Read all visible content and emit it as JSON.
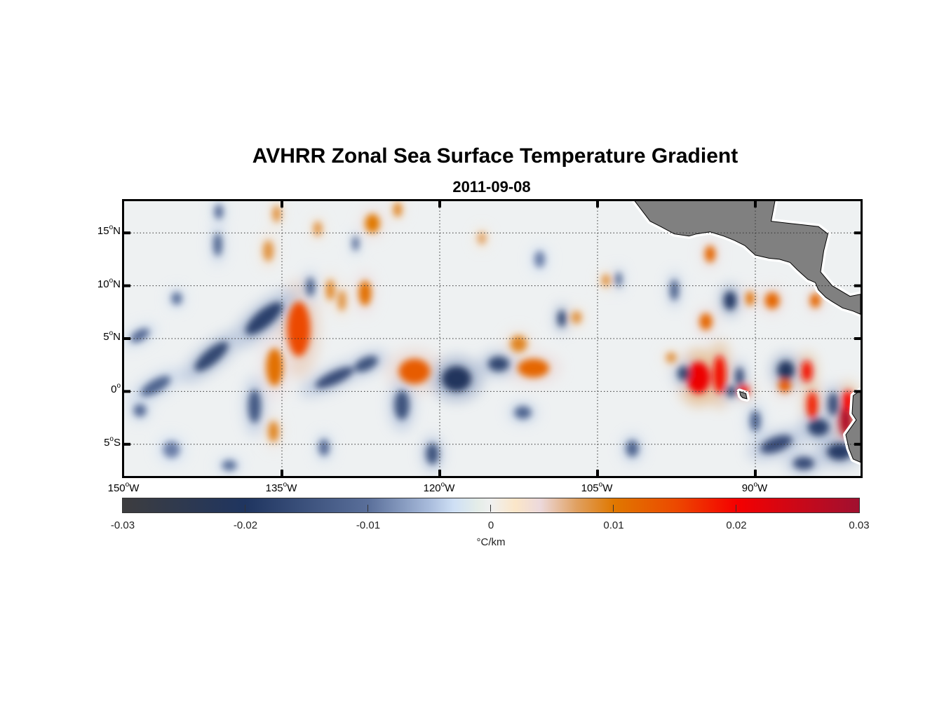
{
  "chart_data": {
    "type": "heatmap",
    "title": "AVHRR Zonal Sea Surface Temperature Gradient",
    "subtitle": "2011-09-08",
    "xlim": [
      -150,
      -80
    ],
    "ylim": [
      -8,
      18
    ],
    "grid": true,
    "x_ticks": [
      {
        "value": -150,
        "label": "150",
        "suffix": "W"
      },
      {
        "value": -135,
        "label": "135",
        "suffix": "W"
      },
      {
        "value": -120,
        "label": "120",
        "suffix": "W"
      },
      {
        "value": -105,
        "label": "105",
        "suffix": "W"
      },
      {
        "value": -90,
        "label": "90",
        "suffix": "W"
      }
    ],
    "y_ticks": [
      {
        "value": 15,
        "label": "15",
        "suffix": "N"
      },
      {
        "value": 10,
        "label": "10",
        "suffix": "N"
      },
      {
        "value": 5,
        "label": "5",
        "suffix": "N"
      },
      {
        "value": 0,
        "label": "0",
        "suffix": ""
      },
      {
        "value": -5,
        "label": "5",
        "suffix": "S"
      }
    ],
    "colorbar": {
      "range": [
        -0.03,
        0.03
      ],
      "ticks": [
        "-0.03",
        "-0.02",
        "-0.01",
        "0",
        "0.01",
        "0.02",
        "0.03"
      ],
      "tick_values": [
        -0.03,
        -0.02,
        -0.01,
        0,
        0.01,
        0.02,
        0.03
      ],
      "unit": "°C/km",
      "placement": "bottom",
      "colormap": [
        [
          -0.03,
          "#3d3d3f"
        ],
        [
          -0.02,
          "#1f3560"
        ],
        [
          -0.01,
          "#5a6f9a"
        ],
        [
          -0.005,
          "#a9bcdc"
        ],
        [
          -0.003,
          "#cfe0f5"
        ],
        [
          -0.001,
          "#e5ede8"
        ],
        [
          0,
          "#f0f0f0"
        ],
        [
          0.002,
          "#fbe6c8"
        ],
        [
          0.004,
          "#ecd9dc"
        ],
        [
          0.007,
          "#e0a060"
        ],
        [
          0.01,
          "#e07800"
        ],
        [
          0.015,
          "#ec4a00"
        ],
        [
          0.02,
          "#f50000"
        ],
        [
          0.03,
          "#a01030"
        ]
      ]
    },
    "land_color": "#808080",
    "features": [
      {
        "lon": -133.4,
        "lat": 5.9,
        "value": 0.015,
        "rx": 1.1,
        "ry": 2.6
      },
      {
        "lon": -135.7,
        "lat": 2.3,
        "value": 0.011,
        "rx": 0.8,
        "ry": 1.8
      },
      {
        "lon": -135.8,
        "lat": -3.8,
        "value": 0.009,
        "rx": 0.5,
        "ry": 1.0
      },
      {
        "lon": -127.1,
        "lat": 9.3,
        "value": 0.011,
        "rx": 0.6,
        "ry": 1.2
      },
      {
        "lon": -130.4,
        "lat": 9.6,
        "value": 0.009,
        "rx": 0.4,
        "ry": 1.0
      },
      {
        "lon": -129.3,
        "lat": 8.6,
        "value": 0.008,
        "rx": 0.4,
        "ry": 1.0
      },
      {
        "lon": -122.4,
        "lat": 1.9,
        "value": 0.013,
        "rx": 1.5,
        "ry": 1.2
      },
      {
        "lon": -111.1,
        "lat": 2.2,
        "value": 0.012,
        "rx": 1.5,
        "ry": 0.9
      },
      {
        "lon": -112.5,
        "lat": 4.5,
        "value": 0.009,
        "rx": 0.8,
        "ry": 0.8
      },
      {
        "lon": -126.4,
        "lat": 15.9,
        "value": 0.01,
        "rx": 0.7,
        "ry": 0.9
      },
      {
        "lon": -124.0,
        "lat": 17.2,
        "value": 0.009,
        "rx": 0.4,
        "ry": 0.7
      },
      {
        "lon": -131.6,
        "lat": 15.4,
        "value": 0.008,
        "rx": 0.4,
        "ry": 0.7
      },
      {
        "lon": -136.3,
        "lat": 13.3,
        "value": 0.008,
        "rx": 0.5,
        "ry": 1.0
      },
      {
        "lon": -135.5,
        "lat": 16.8,
        "value": 0.008,
        "rx": 0.4,
        "ry": 0.8
      },
      {
        "lon": -116.0,
        "lat": 14.5,
        "value": 0.007,
        "rx": 0.4,
        "ry": 0.6
      },
      {
        "lon": -107.0,
        "lat": 7.0,
        "value": 0.008,
        "rx": 0.5,
        "ry": 0.6
      },
      {
        "lon": -95.4,
        "lat": 1.3,
        "value": 0.021,
        "rx": 1.1,
        "ry": 1.5
      },
      {
        "lon": -93.4,
        "lat": 1.6,
        "value": 0.019,
        "rx": 0.6,
        "ry": 1.8
      },
      {
        "lon": -91.1,
        "lat": 0.1,
        "value": 0.019,
        "rx": 0.5,
        "ry": 0.5
      },
      {
        "lon": -85.1,
        "lat": 1.9,
        "value": 0.019,
        "rx": 0.5,
        "ry": 1.0
      },
      {
        "lon": -84.6,
        "lat": -1.3,
        "value": 0.018,
        "rx": 0.5,
        "ry": 1.3
      },
      {
        "lon": -87.2,
        "lat": 0.6,
        "value": 0.013,
        "rx": 0.6,
        "ry": 0.7
      },
      {
        "lon": -81.4,
        "lat": -2.7,
        "value": 0.028,
        "rx": 0.6,
        "ry": 1.5
      },
      {
        "lon": -81.2,
        "lat": -0.9,
        "value": 0.02,
        "rx": 0.5,
        "ry": 1.0
      },
      {
        "lon": -94.7,
        "lat": 6.6,
        "value": 0.012,
        "rx": 0.6,
        "ry": 0.8
      },
      {
        "lon": -88.4,
        "lat": 8.6,
        "value": 0.012,
        "rx": 0.7,
        "ry": 0.8
      },
      {
        "lon": -90.5,
        "lat": 8.8,
        "value": 0.011,
        "rx": 0.4,
        "ry": 0.7
      },
      {
        "lon": -84.3,
        "lat": 8.6,
        "value": 0.012,
        "rx": 0.5,
        "ry": 0.7
      },
      {
        "lon": -94.3,
        "lat": 13.0,
        "value": 0.012,
        "rx": 0.5,
        "ry": 0.8
      },
      {
        "lon": -98.0,
        "lat": 3.2,
        "value": 0.008,
        "rx": 0.5,
        "ry": 0.5
      },
      {
        "lon": -104.2,
        "lat": 10.5,
        "value": 0.008,
        "rx": 0.4,
        "ry": 0.6
      },
      {
        "lon": -136.7,
        "lat": 6.9,
        "value": -0.018,
        "rx": 2.2,
        "ry": 0.8,
        "rot": -40
      },
      {
        "lon": -141.7,
        "lat": 3.3,
        "value": -0.017,
        "rx": 2.0,
        "ry": 0.7,
        "rot": -40
      },
      {
        "lon": -147.0,
        "lat": 0.5,
        "value": -0.012,
        "rx": 1.6,
        "ry": 0.6,
        "rot": -30
      },
      {
        "lon": -148.5,
        "lat": -1.8,
        "value": -0.011,
        "rx": 0.6,
        "ry": 0.6
      },
      {
        "lon": -148.5,
        "lat": 5.3,
        "value": -0.011,
        "rx": 1.0,
        "ry": 0.5,
        "rot": -30
      },
      {
        "lon": -130.0,
        "lat": 1.3,
        "value": -0.016,
        "rx": 2.0,
        "ry": 0.6,
        "rot": -25
      },
      {
        "lon": -127.0,
        "lat": 2.6,
        "value": -0.015,
        "rx": 1.2,
        "ry": 0.6,
        "rot": -25
      },
      {
        "lon": -118.4,
        "lat": 1.2,
        "value": -0.021,
        "rx": 1.4,
        "ry": 1.2
      },
      {
        "lon": -114.4,
        "lat": 2.6,
        "value": -0.017,
        "rx": 1.0,
        "ry": 0.7
      },
      {
        "lon": -137.6,
        "lat": -1.4,
        "value": -0.014,
        "rx": 0.6,
        "ry": 1.6
      },
      {
        "lon": -123.6,
        "lat": -1.3,
        "value": -0.015,
        "rx": 0.7,
        "ry": 1.4
      },
      {
        "lon": -120.7,
        "lat": -5.9,
        "value": -0.015,
        "rx": 0.6,
        "ry": 1.0
      },
      {
        "lon": -131.0,
        "lat": -5.3,
        "value": -0.011,
        "rx": 0.5,
        "ry": 0.8
      },
      {
        "lon": -108.4,
        "lat": 6.9,
        "value": -0.017,
        "rx": 0.4,
        "ry": 0.8
      },
      {
        "lon": -92.4,
        "lat": 8.6,
        "value": -0.019,
        "rx": 0.6,
        "ry": 0.9
      },
      {
        "lon": -87.1,
        "lat": 2.0,
        "value": -0.021,
        "rx": 0.8,
        "ry": 0.9
      },
      {
        "lon": -96.8,
        "lat": 1.7,
        "value": -0.017,
        "rx": 0.6,
        "ry": 0.7
      },
      {
        "lon": -91.5,
        "lat": 1.4,
        "value": -0.016,
        "rx": 0.4,
        "ry": 0.9
      },
      {
        "lon": -92.3,
        "lat": 0.0,
        "value": -0.017,
        "rx": 0.5,
        "ry": 0.5
      },
      {
        "lon": -84.0,
        "lat": -3.4,
        "value": -0.018,
        "rx": 1.0,
        "ry": 0.8
      },
      {
        "lon": -82.6,
        "lat": -1.2,
        "value": -0.016,
        "rx": 0.5,
        "ry": 1.1
      },
      {
        "lon": -82.0,
        "lat": -5.7,
        "value": -0.019,
        "rx": 1.2,
        "ry": 0.8
      },
      {
        "lon": -88.0,
        "lat": -5.0,
        "value": -0.016,
        "rx": 1.6,
        "ry": 0.7,
        "rot": -20
      },
      {
        "lon": -85.4,
        "lat": -6.8,
        "value": -0.016,
        "rx": 1.0,
        "ry": 0.6
      },
      {
        "lon": -90.0,
        "lat": -2.8,
        "value": -0.012,
        "rx": 0.5,
        "ry": 1.0
      },
      {
        "lon": -141.1,
        "lat": 13.9,
        "value": -0.012,
        "rx": 0.4,
        "ry": 1.1
      },
      {
        "lon": -132.3,
        "lat": 9.9,
        "value": -0.013,
        "rx": 0.4,
        "ry": 0.9
      },
      {
        "lon": -112.1,
        "lat": -2.0,
        "value": -0.012,
        "rx": 0.8,
        "ry": 0.6
      },
      {
        "lon": -101.7,
        "lat": -5.4,
        "value": -0.012,
        "rx": 0.6,
        "ry": 0.8
      },
      {
        "lon": -103.0,
        "lat": 10.6,
        "value": -0.012,
        "rx": 0.3,
        "ry": 0.7
      },
      {
        "lon": -97.7,
        "lat": 9.6,
        "value": -0.013,
        "rx": 0.4,
        "ry": 1.0
      },
      {
        "lon": -141.0,
        "lat": 17.0,
        "value": -0.011,
        "rx": 0.4,
        "ry": 0.7
      },
      {
        "lon": -128.0,
        "lat": 14.0,
        "value": -0.011,
        "rx": 0.3,
        "ry": 0.7
      },
      {
        "lon": -145.0,
        "lat": 8.8,
        "value": -0.01,
        "rx": 0.5,
        "ry": 0.6
      },
      {
        "lon": -110.5,
        "lat": 12.5,
        "value": -0.009,
        "rx": 0.5,
        "ry": 0.8
      },
      {
        "lon": -145.5,
        "lat": -5.5,
        "value": -0.009,
        "rx": 0.8,
        "ry": 0.8
      },
      {
        "lon": -140.0,
        "lat": -7.0,
        "value": -0.01,
        "rx": 0.7,
        "ry": 0.5
      }
    ],
    "land": [
      [
        [
          -101.6,
          18.2
        ],
        [
          -88.1,
          18.2
        ],
        [
          -88.5,
          16.1
        ],
        [
          -86.7,
          15.9
        ],
        [
          -84.0,
          15.6
        ],
        [
          -83.1,
          14.9
        ],
        [
          -83.5,
          13.3
        ],
        [
          -83.8,
          11.3
        ],
        [
          -82.7,
          10.0
        ],
        [
          -81.0,
          9.0
        ],
        [
          -80,
          9.2
        ],
        [
          -80,
          7.3
        ],
        [
          -80.7,
          7.6
        ],
        [
          -81.7,
          7.9
        ],
        [
          -82.7,
          8.5
        ],
        [
          -83.3,
          8.9
        ],
        [
          -84.0,
          9.6
        ],
        [
          -84.3,
          10.3
        ],
        [
          -85.0,
          10.6
        ],
        [
          -86.0,
          11.5
        ],
        [
          -86.7,
          12.2
        ],
        [
          -87.7,
          12.5
        ],
        [
          -88.7,
          12.6
        ],
        [
          -90.0,
          12.9
        ],
        [
          -91.0,
          13.8
        ],
        [
          -92.0,
          14.3
        ],
        [
          -93.0,
          14.7
        ],
        [
          -94.3,
          15.1
        ],
        [
          -95.6,
          14.9
        ],
        [
          -96.3,
          14.7
        ],
        [
          -97.7,
          14.9
        ],
        [
          -99.0,
          15.6
        ],
        [
          -100.0,
          16.1
        ]
      ],
      [
        [
          -80,
          0.1
        ],
        [
          -80.7,
          -0.4
        ],
        [
          -80.8,
          -2.1
        ],
        [
          -80.4,
          -2.7
        ],
        [
          -81.4,
          -4.1
        ],
        [
          -81.1,
          -5.4
        ],
        [
          -80.7,
          -6.4
        ],
        [
          -80,
          -6.7
        ]
      ],
      [
        [
          -91.5,
          0.0
        ],
        [
          -90.9,
          -0.2
        ],
        [
          -90.8,
          -0.7
        ],
        [
          -91.2,
          -0.6
        ],
        [
          -91.4,
          -0.4
        ]
      ]
    ]
  }
}
